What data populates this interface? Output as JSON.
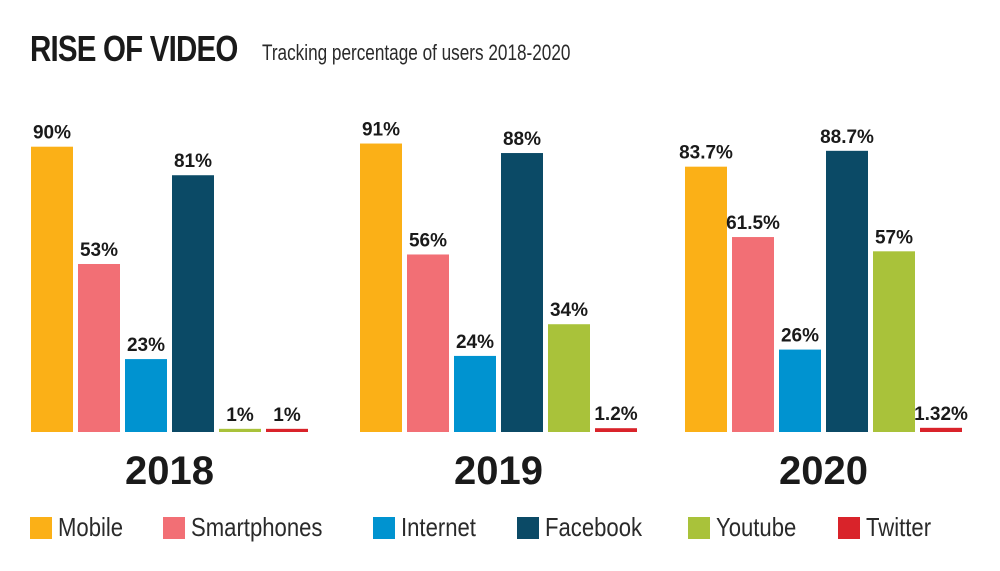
{
  "chart_data": {
    "type": "bar",
    "title": "RISE OF VIDEO",
    "subtitle": "Tracking percentage of users 2018-2020",
    "xlabel": "",
    "ylabel": "",
    "ylim": [
      0,
      100
    ],
    "grid": false,
    "legend_position": "bottom",
    "categories": [
      "2018",
      "2019",
      "2020"
    ],
    "series": [
      {
        "name": "Mobile",
        "color": "#fbb017",
        "values": [
          90,
          91,
          83.7
        ],
        "labels": [
          "90%",
          "91%",
          "83.7%"
        ]
      },
      {
        "name": "Smartphones",
        "color": "#f26f75",
        "values": [
          53,
          56,
          61.5
        ],
        "labels": [
          "53%",
          "56%",
          "61.5%"
        ]
      },
      {
        "name": "Internet",
        "color": "#0093d0",
        "values": [
          23,
          24,
          26
        ],
        "labels": [
          "23%",
          "24%",
          "26%"
        ]
      },
      {
        "name": "Facebook",
        "color": "#0b4a66",
        "values": [
          81,
          88,
          88.7
        ],
        "labels": [
          "81%",
          "88%",
          "88.7%"
        ]
      },
      {
        "name": "Youtube",
        "color": "#a9c23a",
        "values": [
          1,
          34,
          57
        ],
        "labels": [
          "1%",
          "34%",
          "57%"
        ]
      },
      {
        "name": "Twitter",
        "color": "#d9232a",
        "values": [
          1,
          1.2,
          1.32
        ],
        "labels": [
          "1%",
          "1.2%",
          "1.32%"
        ]
      }
    ]
  }
}
